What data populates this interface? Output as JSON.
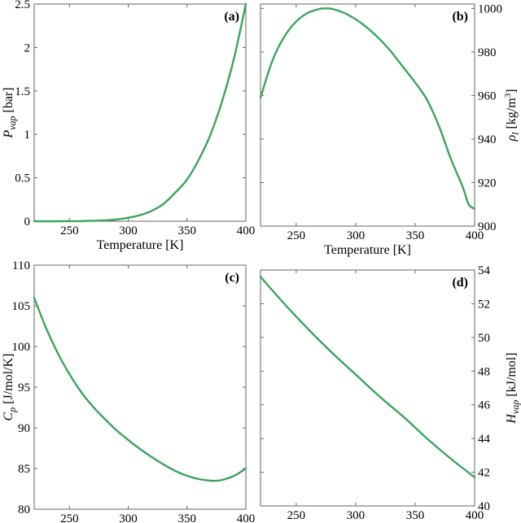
{
  "figure": {
    "xlabel": "Temperature [K]",
    "line_color": "#3aa55c"
  },
  "chart_data": [
    {
      "panel": "(a)",
      "type": "line",
      "xlabel": "Temperature [K]",
      "ylabel_main": "P",
      "ylabel_sub": "vap",
      "ylabel_unit": " [bar]",
      "xlim": [
        220,
        400
      ],
      "ylim": [
        0,
        2.5
      ],
      "xticks": [
        250,
        300,
        350,
        400
      ],
      "yticks": [
        0,
        0.5,
        1,
        1.5,
        2,
        2.5
      ],
      "ytick_labels": [
        "0",
        "0.5",
        "1",
        "1.5",
        "2",
        "2.5"
      ],
      "yaxis_side": "left",
      "x": [
        220,
        240,
        260,
        280,
        290,
        300,
        310,
        320,
        330,
        340,
        350,
        360,
        370,
        380,
        390,
        400
      ],
      "y": [
        0.0,
        0.0,
        0.002,
        0.01,
        0.02,
        0.04,
        0.07,
        0.12,
        0.2,
        0.33,
        0.48,
        0.71,
        1.0,
        1.39,
        1.88,
        2.5
      ]
    },
    {
      "panel": "(b)",
      "type": "line",
      "xlabel": "Temperature [K]",
      "ylabel_main": "ρ",
      "ylabel_sub": "l",
      "ylabel_unit": " [kg/m",
      "ylabel_sup": "3",
      "ylabel_tail": "]",
      "xlim": [
        220,
        400
      ],
      "ylim": [
        900,
        1002
      ],
      "xticks": [
        250,
        300,
        350,
        400
      ],
      "yticks": [
        900,
        920,
        940,
        960,
        980,
        1000
      ],
      "ytick_labels": [
        "900",
        "920",
        "940",
        "960",
        "980",
        "1000"
      ],
      "yaxis_side": "right",
      "x": [
        220,
        230,
        240,
        250,
        260,
        270,
        275,
        280,
        290,
        300,
        310,
        320,
        330,
        340,
        350,
        360,
        370,
        380,
        390,
        395,
        400
      ],
      "y": [
        959,
        976,
        987,
        994,
        998,
        999.8,
        1000,
        999.8,
        998,
        995,
        991,
        986,
        980,
        973,
        966,
        958,
        946,
        931,
        918,
        910,
        908
      ]
    },
    {
      "panel": "(c)",
      "type": "line",
      "xlabel": "Temperature [K]",
      "ylabel_main": "C",
      "ylabel_sub": "p",
      "ylabel_unit": " [J/mol/K]",
      "xlim": [
        220,
        400
      ],
      "ylim": [
        80,
        110
      ],
      "xticks": [
        250,
        300,
        350,
        400
      ],
      "yticks": [
        80,
        85,
        90,
        95,
        100,
        105,
        110
      ],
      "ytick_labels": [
        "80",
        "85",
        "90",
        "95",
        "100",
        "105",
        "110"
      ],
      "yaxis_side": "left",
      "x": [
        220,
        230,
        240,
        250,
        260,
        270,
        280,
        290,
        300,
        310,
        320,
        330,
        340,
        350,
        360,
        370,
        375,
        380,
        390,
        400
      ],
      "y": [
        106,
        102.3,
        99.2,
        96.6,
        94.4,
        92.6,
        91.1,
        89.7,
        88.5,
        87.4,
        86.4,
        85.5,
        84.7,
        84.1,
        83.7,
        83.5,
        83.5,
        83.6,
        84.1,
        85.0
      ]
    },
    {
      "panel": "(d)",
      "type": "line",
      "xlabel": "Temperature [K]",
      "ylabel_main": "H",
      "ylabel_sub": "vap",
      "ylabel_unit": " [kJ/mol]",
      "xlim": [
        220,
        400
      ],
      "ylim": [
        40,
        54
      ],
      "xticks": [
        250,
        300,
        350,
        400
      ],
      "yticks": [
        40,
        42,
        44,
        46,
        48,
        50,
        52,
        54
      ],
      "ytick_labels": [
        "40",
        "42",
        "44",
        "46",
        "48",
        "50",
        "52",
        "54"
      ],
      "yaxis_side": "right",
      "x": [
        220,
        240,
        260,
        280,
        300,
        320,
        340,
        360,
        380,
        400
      ],
      "y": [
        53.6,
        52.0,
        50.5,
        49.1,
        47.8,
        46.5,
        45.3,
        44.0,
        42.8,
        41.7
      ]
    }
  ]
}
